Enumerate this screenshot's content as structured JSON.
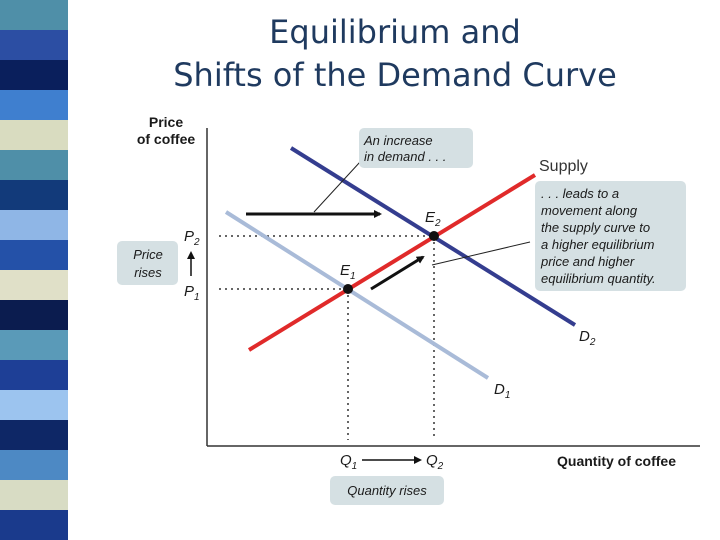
{
  "title": {
    "line1": "Equilibrium and",
    "line2": "Shifts of the Demand Curve"
  },
  "colors": {
    "supply": "#e02a2a",
    "demand1": "#a9bbd8",
    "demand2": "#343d8f",
    "callout": "#d5e0e3",
    "stripe": [
      "#4f8fa8",
      "#2c4ea3",
      "#0a1f5c",
      "#3f7fcf",
      "#d9dcc0",
      "#4f8fa8",
      "#123a7a",
      "#8fb6e6",
      "#2451a8",
      "#e0e0c8",
      "#0b1c4f",
      "#5a9ab8",
      "#1e3f96",
      "#9cc4ef",
      "#0e2766",
      "#4d89c4",
      "#d8dcc4",
      "#1a3a8c"
    ]
  },
  "chart_data": {
    "type": "line",
    "xlabel": "Quantity of coffee",
    "ylabel_lines": [
      "Price",
      "of coffee"
    ],
    "series": [
      {
        "name": "Supply",
        "key": "S"
      },
      {
        "name": "D",
        "sub": "1",
        "key": "D1"
      },
      {
        "name": "D",
        "sub": "2",
        "key": "D2"
      }
    ],
    "points": [
      {
        "name": "E",
        "sub": "1"
      },
      {
        "name": "E",
        "sub": "2"
      }
    ],
    "y_ticks": [
      {
        "name": "P",
        "sub": "2"
      },
      {
        "name": "P",
        "sub": "1"
      }
    ],
    "x_ticks": [
      {
        "name": "Q",
        "sub": "1"
      },
      {
        "name": "Q",
        "sub": "2"
      }
    ]
  },
  "annotations": {
    "increase": [
      "An increase",
      "in demand . . ."
    ],
    "leads": [
      ". . . leads to a",
      "movement along",
      "the supply curve to",
      "a higher equilibrium",
      "price and higher",
      "equilibrium quantity."
    ],
    "price_rises": [
      "Price",
      "rises"
    ],
    "quantity_rises": "Quantity rises"
  }
}
